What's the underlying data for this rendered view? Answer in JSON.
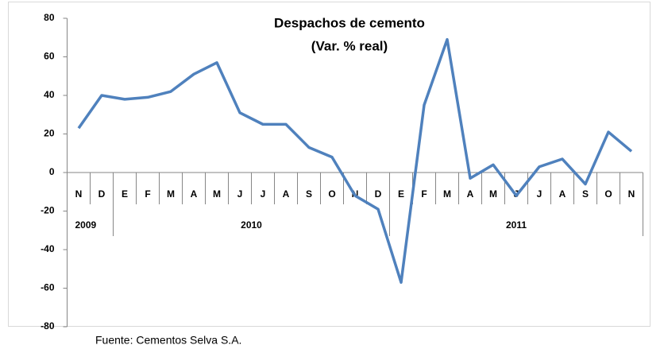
{
  "chart_data": {
    "type": "line",
    "title": "Despachos de cemento",
    "subtitle": "(Var. % real)",
    "source": "Fuente: Cementos Selva S.A.",
    "category_groups": [
      {
        "label": "2009",
        "categories": [
          "N",
          "D"
        ]
      },
      {
        "label": "2010",
        "categories": [
          "E",
          "F",
          "M",
          "A",
          "M",
          "J",
          "J",
          "A",
          "S",
          "O",
          "N",
          "D"
        ]
      },
      {
        "label": "2011",
        "categories": [
          "E",
          "F",
          "M",
          "A",
          "M",
          "J",
          "J",
          "A",
          "S",
          "O",
          "N"
        ]
      }
    ],
    "series": [
      {
        "color": "#4f81bd",
        "values": [
          23,
          40,
          38,
          39,
          42,
          51,
          57,
          31,
          25,
          25,
          13,
          8,
          -12,
          -19,
          -57,
          35,
          69,
          -3,
          4,
          -12,
          3,
          7,
          -6,
          21,
          11
        ]
      }
    ],
    "ylim": [
      -80,
      80
    ],
    "yticks": [
      -80,
      -60,
      -40,
      -20,
      0,
      20,
      40,
      60,
      80
    ],
    "grid": false
  }
}
